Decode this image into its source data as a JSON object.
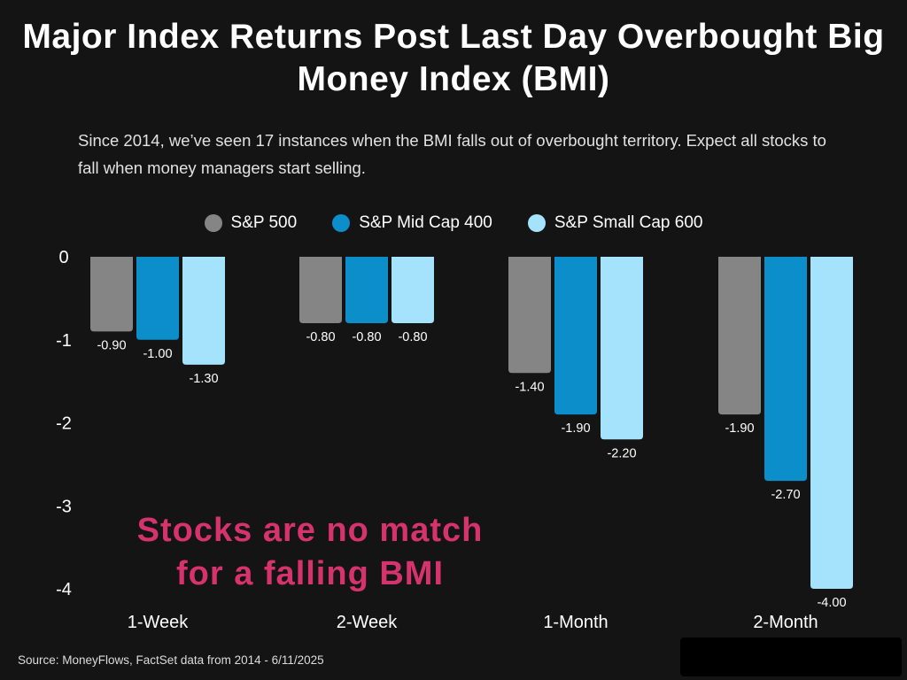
{
  "title": "Major Index Returns Post Last Day Overbought Big Money Index (BMI)",
  "subtitle": "Since 2014, we’ve seen 17 instances when the BMI falls out of overbought territory. Expect all stocks to fall when money managers start selling.",
  "source": "Source: MoneyFlows, FactSet data from 2014 - 6/11/2025",
  "annotation": "Stocks are no match for a falling BMI",
  "colors": {
    "background": "#141414",
    "annotation": "#d6336c",
    "text": "#ffffff"
  },
  "chart_data": {
    "type": "bar",
    "categories": [
      "1-Week",
      "2-Week",
      "1-Month",
      "2-Month"
    ],
    "series": [
      {
        "name": "S&P 500",
        "color": "#858585",
        "values": [
          -0.9,
          -0.8,
          -1.4,
          -1.9
        ]
      },
      {
        "name": "S&P Mid Cap 400",
        "color": "#0b8ec9",
        "values": [
          -1.0,
          -0.8,
          -1.9,
          -2.7
        ]
      },
      {
        "name": "S&P Small Cap 600",
        "color": "#a5e2fb",
        "values": [
          -1.3,
          -0.8,
          -2.2,
          -4.0
        ]
      }
    ],
    "data_labels": [
      [
        "-0.90",
        "-0.80",
        "-1.40",
        "-1.90"
      ],
      [
        "-1.00",
        "-0.80",
        "-1.90",
        "-2.70"
      ],
      [
        "-1.30",
        "-0.80",
        "-2.20",
        "-4.00"
      ]
    ],
    "y_ticks": [
      0,
      -1,
      -2,
      -3,
      -4
    ],
    "y_tick_labels": [
      "0",
      "-1",
      "-2",
      "-3",
      "-4"
    ],
    "ylim": [
      -4,
      0
    ],
    "grid": false,
    "legend_position": "top-center"
  }
}
